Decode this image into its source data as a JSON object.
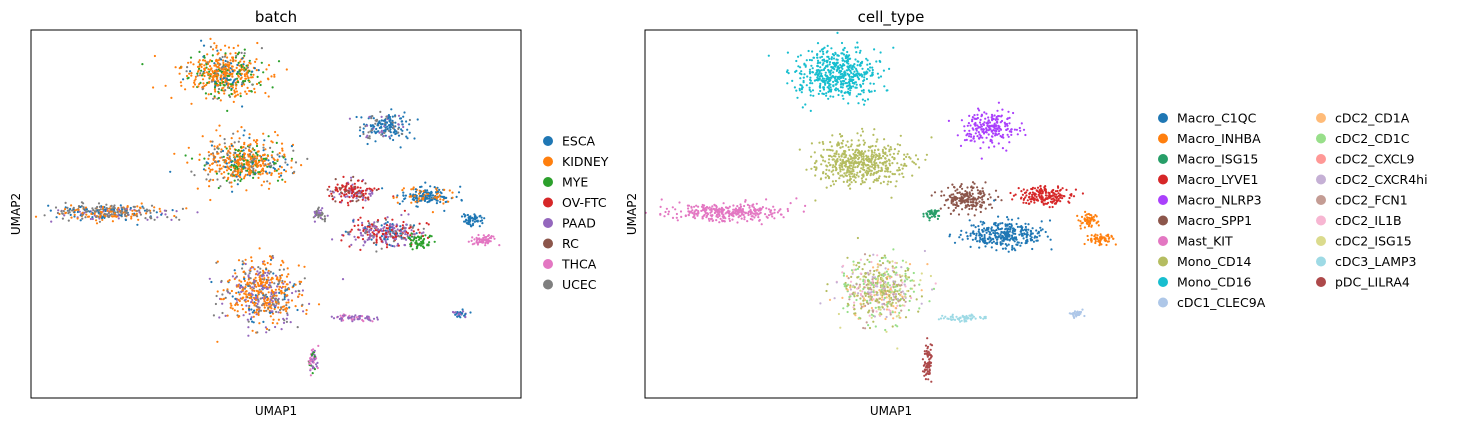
{
  "chart_data": [
    {
      "type": "scatter",
      "title": "batch",
      "xlabel": "UMAP1",
      "ylabel": "UMAP2",
      "grid": false,
      "ticks": "none",
      "legend_placement": "right",
      "legend": [
        {
          "name": "ESCA",
          "color": "#1f77b4"
        },
        {
          "name": "KIDNEY",
          "color": "#ff7f0e"
        },
        {
          "name": "MYE",
          "color": "#2ca02c"
        },
        {
          "name": "OV-FTC",
          "color": "#d62728"
        },
        {
          "name": "PAAD",
          "color": "#9467bd"
        },
        {
          "name": "RC",
          "color": "#8c564b"
        },
        {
          "name": "THCA",
          "color": "#e377c2"
        },
        {
          "name": "UCEC",
          "color": "#7f7f7f"
        }
      ]
    },
    {
      "type": "scatter",
      "title": "cell_type",
      "xlabel": "UMAP1",
      "ylabel": "UMAP2",
      "grid": false,
      "ticks": "none",
      "legend_placement": "right",
      "legend": [
        {
          "name": "Macro_C1QC",
          "color": "#1f77b4"
        },
        {
          "name": "Macro_INHBA",
          "color": "#ff7f0e"
        },
        {
          "name": "Macro_ISG15",
          "color": "#279e68"
        },
        {
          "name": "Macro_LYVE1",
          "color": "#d62728"
        },
        {
          "name": "Macro_NLRP3",
          "color": "#aa40fc"
        },
        {
          "name": "Macro_SPP1",
          "color": "#8c564b"
        },
        {
          "name": "Mast_KIT",
          "color": "#e377c2"
        },
        {
          "name": "Mono_CD14",
          "color": "#b5bd61"
        },
        {
          "name": "Mono_CD16",
          "color": "#17becf"
        },
        {
          "name": "cDC1_CLEC9A",
          "color": "#aec7e8"
        },
        {
          "name": "cDC2_CD1A",
          "color": "#ffbb78"
        },
        {
          "name": "cDC2_CD1C",
          "color": "#98df8a"
        },
        {
          "name": "cDC2_CXCL9",
          "color": "#ff9896"
        },
        {
          "name": "cDC2_CXCR4hi",
          "color": "#c5b0d5"
        },
        {
          "name": "cDC2_FCN1",
          "color": "#c49c94"
        },
        {
          "name": "cDC2_IL1B",
          "color": "#f7b6d2"
        },
        {
          "name": "cDC2_ISG15",
          "color": "#dbdb8d"
        },
        {
          "name": "cDC3_LAMP3",
          "color": "#9edae5"
        },
        {
          "name": "pDC_LILRA4",
          "color": "#ad494a"
        }
      ]
    }
  ]
}
